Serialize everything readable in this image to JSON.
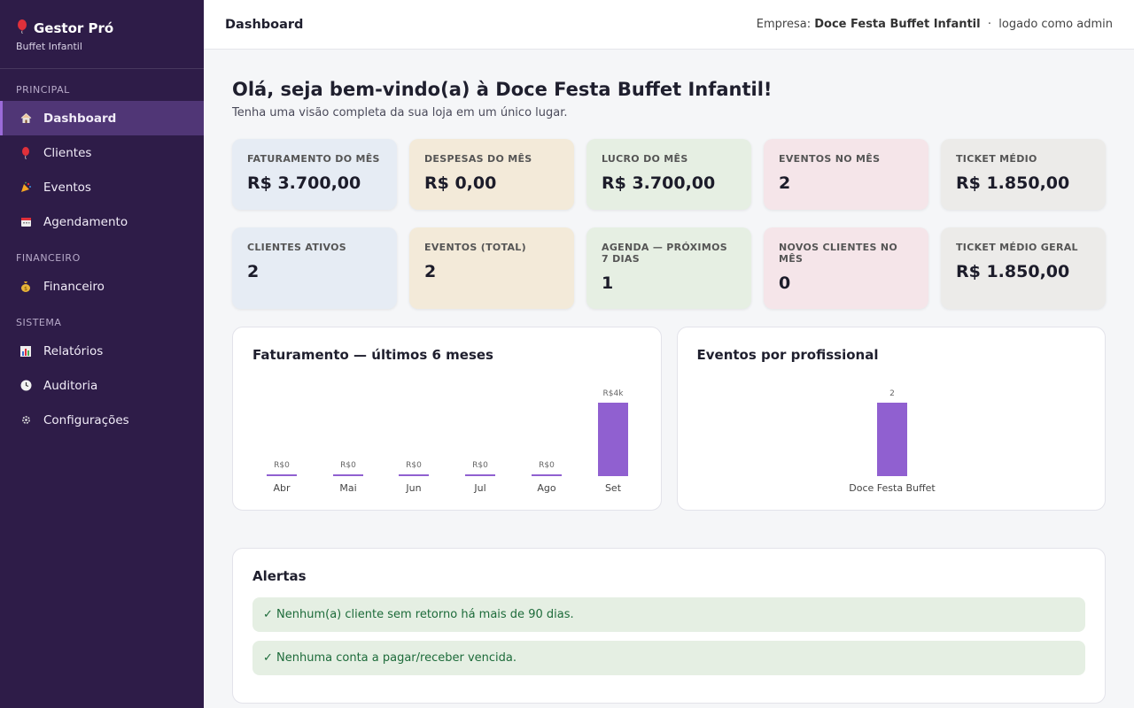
{
  "brand": {
    "title": "Gestor Pró",
    "subtitle": "Buffet Infantil"
  },
  "sidebar": {
    "sections": [
      {
        "label": "PRINCIPAL",
        "items": [
          {
            "label": "Dashboard",
            "icon": "home-icon",
            "active": true
          },
          {
            "label": "Clientes",
            "icon": "balloon-icon"
          },
          {
            "label": "Eventos",
            "icon": "party-icon"
          },
          {
            "label": "Agendamento",
            "icon": "calendar-icon"
          }
        ]
      },
      {
        "label": "FINANCEIRO",
        "items": [
          {
            "label": "Financeiro",
            "icon": "money-bag-icon"
          }
        ]
      },
      {
        "label": "SISTEMA",
        "items": [
          {
            "label": "Relatórios",
            "icon": "bar-chart-icon"
          },
          {
            "label": "Auditoria",
            "icon": "clock-icon"
          },
          {
            "label": "Configurações",
            "icon": "gear-icon"
          }
        ]
      }
    ]
  },
  "header": {
    "title": "Dashboard",
    "company_prefix": "Empresa:",
    "company": "Doce Festa Buffet Infantil",
    "separator": "·",
    "user": "logado como admin"
  },
  "main": {
    "welcome": "Olá, seja bem-vindo(a) à Doce Festa Buffet Infantil!",
    "welcome_sub": "Tenha uma visão completa da sua loja em um único lugar.",
    "cards_row1": [
      {
        "label": "FATURAMENTO DO MÊS",
        "value": "R$ 3.700,00",
        "color": "#e6ecf4"
      },
      {
        "label": "DESPESAS DO MÊS",
        "value": "R$ 0,00",
        "color": "#f3ead9"
      },
      {
        "label": "LUCRO DO MÊS",
        "value": "R$ 3.700,00",
        "color": "#e6efe3"
      },
      {
        "label": "EVENTOS NO MÊS",
        "value": "2",
        "color": "#f5e5e9"
      },
      {
        "label": "TICKET MÉDIO",
        "value": "R$ 1.850,00",
        "color": "#ecebe9"
      }
    ],
    "cards_row2": [
      {
        "label": "CLIENTES ATIVOS",
        "value": "2",
        "color": "#e6ecf4"
      },
      {
        "label": "EVENTOS (TOTAL)",
        "value": "2",
        "color": "#f3ead9"
      },
      {
        "label": "AGENDA — PRÓXIMOS 7 DIAS",
        "value": "1",
        "color": "#e6efe3"
      },
      {
        "label": "NOVOS CLIENTES NO MÊS",
        "value": "0",
        "color": "#f5e5e9"
      },
      {
        "label": "TICKET MÉDIO GERAL",
        "value": "R$ 1.850,00",
        "color": "#ecebe9"
      }
    ],
    "alerts_title": "Alertas",
    "alerts": [
      "✓ Nenhum(a) cliente sem retorno há mais de 90 dias.",
      "✓ Nenhuma conta a pagar/receber vencida."
    ]
  },
  "chart_data": [
    {
      "type": "bar",
      "title": "Faturamento — últimos 6 meses",
      "categories": [
        "Abr",
        "Mai",
        "Jun",
        "Jul",
        "Ago",
        "Set"
      ],
      "values": [
        0,
        0,
        0,
        0,
        0,
        3700
      ],
      "data_labels": [
        "R$0",
        "R$0",
        "R$0",
        "R$0",
        "R$0",
        "R$4k"
      ],
      "bar_color": "#9060d0"
    },
    {
      "type": "bar",
      "title": "Eventos por profissional",
      "categories": [
        "Doce Festa Buffet"
      ],
      "values": [
        2
      ],
      "data_labels": [
        "2"
      ],
      "bar_color": "#9060d0"
    }
  ]
}
